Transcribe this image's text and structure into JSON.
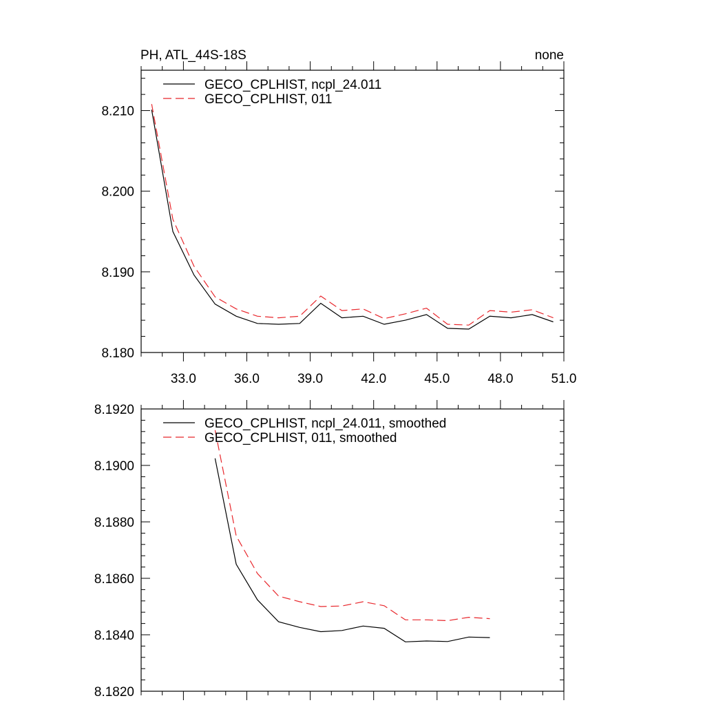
{
  "chart_data": [
    {
      "type": "line",
      "title_left": "PH, ATL_44S-18S",
      "title_right": "none",
      "xlim": [
        31.0,
        51.0
      ],
      "ylim": [
        8.18,
        8.215
      ],
      "x_ticks": [
        33.0,
        36.0,
        39.0,
        42.0,
        45.0,
        48.0,
        51.0
      ],
      "x_tick_labels": [
        "33.0",
        "36.0",
        "39.0",
        "42.0",
        "45.0",
        "48.0",
        "51.0"
      ],
      "y_ticks": [
        8.18,
        8.19,
        8.2,
        8.21
      ],
      "y_tick_labels": [
        "8.180",
        "8.190",
        "8.200",
        "8.210"
      ],
      "legend_position": "top-left",
      "series": [
        {
          "name": "GECO_CPLHIST, ncpl_24.011",
          "color": "#000000",
          "dash": "solid",
          "x": [
            31.5,
            32.5,
            33.5,
            34.5,
            35.5,
            36.5,
            37.5,
            38.5,
            39.5,
            40.5,
            41.5,
            42.5,
            43.5,
            44.5,
            45.5,
            46.5,
            47.5,
            48.5,
            49.5,
            50.5
          ],
          "y": [
            8.2101,
            8.195,
            8.1896,
            8.186,
            8.1845,
            8.1836,
            8.1835,
            8.1836,
            8.1861,
            8.1843,
            8.1845,
            8.1835,
            8.184,
            8.1847,
            8.183,
            8.1829,
            8.1845,
            8.1843,
            8.1847,
            8.1838
          ]
        },
        {
          "name": "GECO_CPLHIST, 011",
          "color": "#e8262b",
          "dash": "dashed",
          "x": [
            31.5,
            32.5,
            33.5,
            34.5,
            35.5,
            36.5,
            37.5,
            38.5,
            39.5,
            40.5,
            41.5,
            42.5,
            43.5,
            44.5,
            45.5,
            46.5,
            47.5,
            48.5,
            49.5,
            50.5
          ],
          "y": [
            8.2108,
            8.1965,
            8.1907,
            8.1869,
            8.1854,
            8.1845,
            8.1843,
            8.1845,
            8.187,
            8.1852,
            8.1854,
            8.1842,
            8.1848,
            8.1855,
            8.1835,
            8.1834,
            8.1852,
            8.185,
            8.1853,
            8.1843
          ]
        }
      ]
    },
    {
      "type": "line",
      "xlim": [
        31.0,
        51.0
      ],
      "ylim": [
        8.182,
        8.192
      ],
      "x_ticks": [
        33.0,
        36.0,
        39.0,
        42.0,
        45.0,
        48.0,
        51.0
      ],
      "y_ticks": [
        8.182,
        8.184,
        8.186,
        8.188,
        8.19,
        8.192
      ],
      "y_tick_labels": [
        "8.1820",
        "8.1840",
        "8.1860",
        "8.1880",
        "8.1900",
        "8.1920"
      ],
      "legend_position": "top-left",
      "series": [
        {
          "name": "GECO_CPLHIST, ncpl_24.011, smoothed",
          "color": "#000000",
          "dash": "solid",
          "x": [
            34.5,
            35.5,
            36.5,
            37.5,
            38.5,
            39.5,
            40.5,
            41.5,
            42.5,
            43.5,
            44.5,
            45.5,
            46.5,
            47.5
          ],
          "y": [
            8.19025,
            8.1865,
            8.18524,
            8.18446,
            8.18426,
            8.18411,
            8.18415,
            8.18431,
            8.18423,
            8.18375,
            8.18378,
            8.18376,
            8.18392,
            8.1839
          ]
        },
        {
          "name": "GECO_CPLHIST, 011, smoothed",
          "color": "#e8262b",
          "dash": "dashed",
          "x": [
            34.5,
            35.5,
            36.5,
            37.5,
            38.5,
            39.5,
            40.5,
            41.5,
            42.5,
            43.5,
            44.5,
            45.5,
            46.5,
            47.5
          ],
          "y": [
            8.19125,
            8.1875,
            8.18617,
            8.18537,
            8.18517,
            8.185,
            8.18502,
            8.18517,
            8.18503,
            8.18453,
            8.18453,
            8.1845,
            8.18462,
            8.18457
          ]
        }
      ]
    }
  ]
}
